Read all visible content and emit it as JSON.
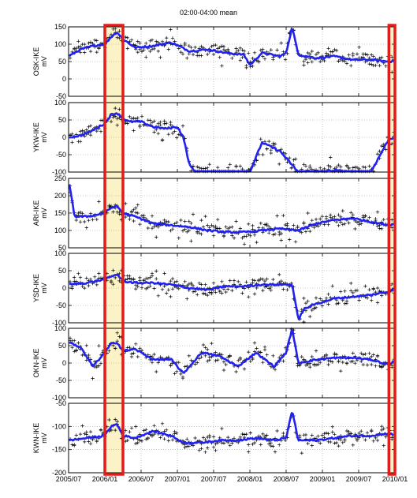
{
  "title": "02:00-04:00 mean",
  "colors": {
    "mean_line": "#2222ee",
    "points": "#000000",
    "highlight_fill": "#fbf3c6",
    "highlight_border": "#e21b1b",
    "grid": "#9a9a9a"
  },
  "chart_data": {
    "type": "scatter",
    "title": "02:00-04:00 mean",
    "x_range": [
      "2005/07",
      "2010/01"
    ],
    "x_ticks": [
      "2005/07",
      "2006/01",
      "2006/07",
      "2007/01",
      "2007/07",
      "2008/01",
      "2008/07",
      "2009/01",
      "2009/07",
      "2010/01"
    ],
    "highlight_periods": [
      [
        "2006/01",
        "2006/04"
      ],
      [
        "2009/12",
        "2010/01"
      ]
    ],
    "grid": true,
    "series": [
      {
        "name": "OSK-IKE",
        "unit": "mV",
        "ylim": [
          -50,
          150
        ],
        "yticks": [
          -50,
          0,
          50,
          100,
          150
        ],
        "x": [
          "2005/07",
          "2005/09",
          "2005/11",
          "2006/01",
          "2006/02",
          "2006/03",
          "2006/04",
          "2006/06",
          "2006/09",
          "2006/12",
          "2007/03",
          "2007/06",
          "2007/09",
          "2007/12",
          "2008/01",
          "2008/03",
          "2008/06",
          "2008/07",
          "2008/08",
          "2008/09",
          "2008/12",
          "2009/03",
          "2009/06",
          "2009/09",
          "2009/12",
          "2010/01"
        ],
        "y": [
          65,
          85,
          95,
          100,
          120,
          135,
          115,
          90,
          95,
          105,
          80,
          85,
          75,
          70,
          40,
          75,
          65,
          75,
          150,
          70,
          60,
          65,
          55,
          55,
          50,
          55
        ]
      },
      {
        "name": "YKW-IKE",
        "unit": "mV",
        "ylim": [
          -100,
          100
        ],
        "yticks": [
          -100,
          -50,
          0,
          50,
          100
        ],
        "x": [
          "2005/07",
          "2005/09",
          "2005/11",
          "2006/01",
          "2006/02",
          "2006/03",
          "2006/04",
          "2006/05",
          "2006/07",
          "2006/09",
          "2006/11",
          "2007/01",
          "2007/02",
          "2007/03",
          "2007/04",
          "2007/06",
          "2007/08",
          "2007/11",
          "2008/01",
          "2008/03",
          "2008/06",
          "2008/09",
          "2008/12",
          "2009/03",
          "2009/06",
          "2009/09",
          "2009/12",
          "2010/01"
        ],
        "y": [
          0,
          5,
          20,
          40,
          65,
          70,
          55,
          45,
          45,
          30,
          25,
          30,
          0,
          -80,
          -100,
          -100,
          -100,
          -100,
          -100,
          -15,
          -40,
          -100,
          -100,
          -95,
          -100,
          -100,
          -5,
          0
        ]
      },
      {
        "name": "ARI-IKE",
        "unit": "mV",
        "ylim": [
          50,
          250
        ],
        "yticks": [
          50,
          100,
          150,
          200,
          250
        ],
        "x": [
          "2005/07",
          "2005/08",
          "2005/10",
          "2006/01",
          "2006/02",
          "2006/03",
          "2006/04",
          "2006/06",
          "2006/09",
          "2006/12",
          "2007/03",
          "2007/06",
          "2007/09",
          "2007/12",
          "2008/03",
          "2008/06",
          "2008/09",
          "2008/12",
          "2009/03",
          "2009/06",
          "2009/09",
          "2009/12",
          "2010/01"
        ],
        "y": [
          245,
          140,
          140,
          150,
          165,
          170,
          150,
          140,
          120,
          115,
          110,
          100,
          95,
          95,
          100,
          105,
          100,
          120,
          130,
          135,
          125,
          115,
          120
        ]
      },
      {
        "name": "YSD-IKE",
        "unit": "mV",
        "ylim": [
          -100,
          100
        ],
        "yticks": [
          -100,
          -50,
          0,
          50,
          100
        ],
        "x": [
          "2005/07",
          "2005/10",
          "2006/01",
          "2006/03",
          "2006/04",
          "2006/06",
          "2006/09",
          "2006/12",
          "2007/03",
          "2007/06",
          "2007/09",
          "2007/12",
          "2008/03",
          "2008/06",
          "2008/08",
          "2008/09",
          "2008/10",
          "2008/12",
          "2009/03",
          "2009/06",
          "2009/09",
          "2009/12",
          "2010/01"
        ],
        "y": [
          10,
          15,
          25,
          40,
          20,
          15,
          15,
          10,
          0,
          -5,
          5,
          5,
          10,
          10,
          10,
          -90,
          -60,
          -45,
          -30,
          -25,
          -20,
          -10,
          0
        ]
      },
      {
        "name": "OKN-IKE",
        "unit": "mV",
        "ylim": [
          -100,
          100
        ],
        "yticks": [
          -100,
          -50,
          0,
          50,
          100
        ],
        "x": [
          "2005/07",
          "2005/09",
          "2005/11",
          "2006/01",
          "2006/02",
          "2006/03",
          "2006/04",
          "2006/06",
          "2006/09",
          "2006/12",
          "2007/02",
          "2007/05",
          "2007/08",
          "2007/11",
          "2008/02",
          "2008/05",
          "2008/07",
          "2008/08",
          "2008/09",
          "2008/12",
          "2009/03",
          "2009/06",
          "2009/09",
          "2009/12",
          "2010/01"
        ],
        "y": [
          60,
          45,
          -10,
          30,
          55,
          60,
          35,
          40,
          10,
          10,
          -30,
          30,
          20,
          -10,
          30,
          -10,
          30,
          100,
          0,
          10,
          15,
          15,
          10,
          -5,
          10
        ]
      },
      {
        "name": "KWN-IKE",
        "unit": "mV",
        "ylim": [
          -200,
          -50
        ],
        "yticks": [
          -200,
          -150,
          -100,
          -50
        ],
        "x": [
          "2005/07",
          "2005/10",
          "2006/01",
          "2006/02",
          "2006/03",
          "2006/04",
          "2006/06",
          "2006/09",
          "2006/12",
          "2007/02",
          "2007/05",
          "2007/08",
          "2007/11",
          "2008/02",
          "2008/05",
          "2008/07",
          "2008/08",
          "2008/09",
          "2008/12",
          "2009/03",
          "2009/06",
          "2009/09",
          "2009/12",
          "2010/01"
        ],
        "y": [
          -130,
          -125,
          -120,
          -100,
          -95,
          -120,
          -125,
          -110,
          -120,
          -135,
          -135,
          -130,
          -130,
          -125,
          -130,
          -125,
          -65,
          -130,
          -130,
          -125,
          -120,
          -120,
          -115,
          -120
        ]
      }
    ]
  }
}
